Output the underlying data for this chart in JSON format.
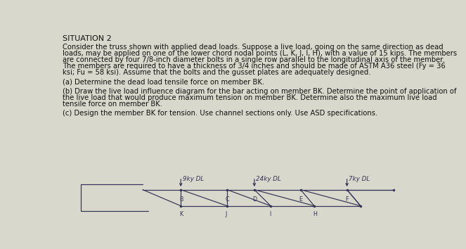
{
  "title": "SITUATION 2",
  "line1": "Consider the truss shown with applied dead loads. Suppose a live load, going on the same direction as dead",
  "line2": "loads, may be applied on one of the lower chord nodal points (L, K, J, I, H), with a value of 15 kips. The members",
  "line3": "are connected by four 7/8-inch diameter bolts in a single row parallel to the longitudinal axis of the member.",
  "line4": "The members are required to have a thickness of 3/4 inches and should be made of ASTM A36 steel (Fy = 36",
  "line5": "ksi; Fu = 58 ksi). Assume that the bolts and the gusset plates are adequately designed.",
  "part_a": "(a) Determine the dead load tensile force on member BK.",
  "part_b1": "(b) Draw the live load influence diagram for the bar acting on member BK. Determine the point of application of",
  "part_b2": "the live load that would produce maximum tension on member BK. Determine also the maximum live load",
  "part_b3": "tensile force on member BK.",
  "part_c": "(c) Design the member BK for tension. Use channel sections only. Use ASD specifications.",
  "dl_label_1": "9ky DL",
  "dl_label_2": "24ky DL",
  "dl_label_3": "7ky DL",
  "bg_color": "#d8d8cc",
  "text_color": "#111111",
  "truss_color": "#333355",
  "load_color": "#333355",
  "body_fontsize": 7.2,
  "title_fontsize": 8.0,
  "label_fontsize": 5.8
}
